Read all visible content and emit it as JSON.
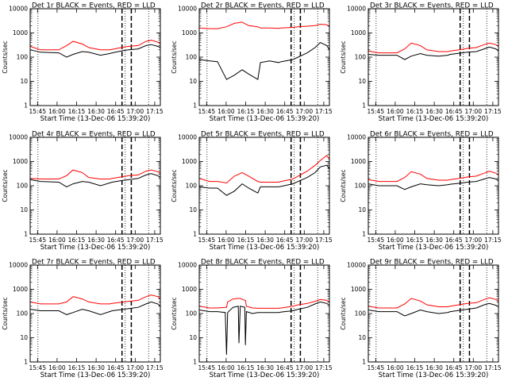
{
  "figure": {
    "start_time_label": "Start Time (13-Dec-06 15:39:20)",
    "ylabel": "Counts/sec",
    "x_tick_labels": [
      "15:45",
      "16:00",
      "16:15",
      "16:30",
      "16:45",
      "17:00",
      "17:15"
    ],
    "y_tick_labels": [
      "1",
      "10",
      "100",
      "1000",
      "10000"
    ],
    "colors": {
      "events": "#000000",
      "lld": "#ff0000",
      "axes": "#000000"
    }
  },
  "chart_data": [
    {
      "type": "line",
      "title": "Det 1r BLACK = Events, RED = LLD",
      "xlabel": "Start Time (13-Dec-06 15:39:20)",
      "ylabel": "Counts/sec",
      "x_unit": "minutes after 15:39:20",
      "xlim": [
        0,
        100
      ],
      "ylim": [
        1,
        10000
      ],
      "y_scale": "log",
      "x": [
        0,
        8,
        22,
        28,
        33,
        40,
        45,
        54,
        61,
        63,
        72,
        76,
        83,
        89,
        93,
        98,
        100
      ],
      "series": [
        {
          "name": "Events",
          "color": "#000000",
          "values": [
            200,
            160,
            150,
            100,
            130,
            170,
            160,
            120,
            140,
            150,
            190,
            200,
            220,
            300,
            330,
            280,
            250
          ]
        },
        {
          "name": "LLD",
          "color": "#ff0000",
          "values": [
            280,
            200,
            200,
            300,
            450,
            350,
            250,
            200,
            200,
            210,
            260,
            280,
            300,
            450,
            500,
            420,
            350
          ]
        }
      ],
      "markers": {
        "S": 16.8,
        "E": 18.5,
        "dotted_x": [
          6,
          73,
          91
        ]
      }
    },
    {
      "type": "line",
      "title": "Det 2r BLACK = Events, RED = LLD",
      "xlabel": "Start Time (13-Dec-06 15:39:20)",
      "ylabel": "Counts/sec",
      "x_unit": "minutes after 15:39:20",
      "xlim": [
        0,
        100
      ],
      "ylim": [
        1,
        10000
      ],
      "y_scale": "log",
      "x": [
        0,
        8,
        14,
        21,
        27,
        33,
        38,
        45,
        47,
        54,
        61,
        63,
        72,
        76,
        83,
        89,
        93,
        98,
        100
      ],
      "series": [
        {
          "name": "Events",
          "color": "#000000",
          "values": [
            80,
            70,
            65,
            12,
            18,
            30,
            20,
            12,
            60,
            70,
            60,
            65,
            80,
            100,
            150,
            250,
            400,
            300,
            200
          ]
        },
        {
          "name": "LLD",
          "color": "#ff0000",
          "values": [
            1600,
            1500,
            1500,
            1800,
            2500,
            2800,
            2000,
            1800,
            1600,
            1600,
            1550,
            1600,
            1700,
            1800,
            1900,
            2000,
            2300,
            2200,
            1800
          ]
        }
      ],
      "markers": {
        "S": 16.8,
        "E": 18.5,
        "dotted_x": [
          6,
          73,
          91
        ]
      }
    },
    {
      "type": "line",
      "title": "Det 3r BLACK = Events, RED = LLD",
      "xlabel": "Start Time (13-Dec-06 15:39:20)",
      "ylabel": "Counts/sec",
      "x_unit": "minutes after 15:39:20",
      "xlim": [
        0,
        100
      ],
      "ylim": [
        1,
        10000
      ],
      "y_scale": "log",
      "x": [
        0,
        8,
        22,
        28,
        33,
        40,
        45,
        54,
        61,
        63,
        72,
        76,
        83,
        89,
        93,
        98,
        100
      ],
      "series": [
        {
          "name": "Events",
          "color": "#000000",
          "values": [
            130,
            120,
            120,
            80,
            110,
            140,
            120,
            110,
            120,
            130,
            150,
            160,
            170,
            220,
            260,
            220,
            180
          ]
        },
        {
          "name": "LLD",
          "color": "#ff0000",
          "values": [
            180,
            150,
            150,
            220,
            380,
            300,
            200,
            170,
            170,
            180,
            210,
            230,
            250,
            330,
            380,
            330,
            280
          ]
        }
      ],
      "markers": {
        "S": 16.8,
        "E": 18.5,
        "dotted_x": [
          6,
          73,
          91
        ]
      }
    },
    {
      "type": "line",
      "title": "Det 4r BLACK = Events, RED = LLD",
      "xlabel": "Start Time (13-Dec-06 15:39:20)",
      "ylabel": "Counts/sec",
      "x_unit": "minutes after 15:39:20",
      "xlim": [
        0,
        100
      ],
      "ylim": [
        1,
        10000
      ],
      "y_scale": "log",
      "x": [
        0,
        8,
        22,
        28,
        33,
        40,
        45,
        54,
        61,
        63,
        72,
        76,
        83,
        89,
        93,
        98,
        100
      ],
      "series": [
        {
          "name": "Events",
          "color": "#000000",
          "values": [
            180,
            150,
            140,
            90,
            120,
            150,
            140,
            100,
            130,
            140,
            170,
            180,
            200,
            280,
            320,
            260,
            220
          ]
        },
        {
          "name": "LLD",
          "color": "#ff0000",
          "values": [
            200,
            190,
            190,
            260,
            450,
            350,
            220,
            190,
            190,
            200,
            240,
            260,
            280,
            400,
            450,
            380,
            320
          ]
        }
      ],
      "markers": {
        "S": 16.8,
        "E": 18.5,
        "dotted_x": [
          6,
          73,
          91
        ]
      }
    },
    {
      "type": "line",
      "title": "Det 5r BLACK = Events, RED = LLD",
      "xlabel": "Start Time (13-Dec-06 15:39:20)",
      "ylabel": "Counts/sec",
      "x_unit": "minutes after 15:39:20",
      "xlim": [
        0,
        100
      ],
      "ylim": [
        1,
        10000
      ],
      "y_scale": "log",
      "x": [
        0,
        8,
        14,
        21,
        27,
        33,
        38,
        45,
        47,
        54,
        61,
        63,
        72,
        76,
        83,
        89,
        93,
        98,
        100
      ],
      "series": [
        {
          "name": "Events",
          "color": "#000000",
          "values": [
            90,
            80,
            80,
            40,
            60,
            120,
            80,
            50,
            90,
            90,
            90,
            95,
            120,
            150,
            220,
            350,
            600,
            700,
            500
          ]
        },
        {
          "name": "LLD",
          "color": "#ff0000",
          "values": [
            200,
            150,
            150,
            130,
            250,
            350,
            250,
            150,
            140,
            140,
            140,
            150,
            190,
            250,
            400,
            700,
            1100,
            1800,
            1200
          ]
        }
      ],
      "markers": {
        "S": 16.8,
        "E": 18.5,
        "dotted_x": [
          6,
          73,
          91
        ]
      }
    },
    {
      "type": "line",
      "title": "Det 6r BLACK = Events, RED = LLD",
      "xlabel": "Start Time (13-Dec-06 15:39:20)",
      "ylabel": "Counts/sec",
      "x_unit": "minutes after 15:39:20",
      "xlim": [
        0,
        100
      ],
      "ylim": [
        1,
        10000
      ],
      "y_scale": "log",
      "x": [
        0,
        8,
        22,
        28,
        33,
        40,
        45,
        54,
        61,
        63,
        72,
        76,
        83,
        89,
        93,
        98,
        100
      ],
      "series": [
        {
          "name": "Events",
          "color": "#000000",
          "values": [
            120,
            100,
            100,
            70,
            90,
            120,
            110,
            100,
            110,
            115,
            130,
            140,
            150,
            190,
            220,
            190,
            160
          ]
        },
        {
          "name": "LLD",
          "color": "#ff0000",
          "values": [
            180,
            150,
            150,
            220,
            380,
            300,
            200,
            170,
            170,
            180,
            210,
            230,
            250,
            330,
            400,
            330,
            280
          ]
        }
      ],
      "markers": {
        "S": 16.8,
        "E": 18.5,
        "dotted_x": [
          6,
          73,
          91
        ]
      }
    },
    {
      "type": "line",
      "title": "Det 7r BLACK = Events, RED = LLD",
      "xlabel": "Start Time (13-Dec-06 15:39:20)",
      "ylabel": "Counts/sec",
      "x_unit": "minutes after 15:39:20",
      "xlim": [
        0,
        100
      ],
      "ylim": [
        1,
        10000
      ],
      "y_scale": "log",
      "x": [
        0,
        8,
        22,
        28,
        33,
        40,
        45,
        54,
        61,
        63,
        72,
        76,
        83,
        89,
        93,
        98,
        100
      ],
      "series": [
        {
          "name": "Events",
          "color": "#000000",
          "values": [
            150,
            130,
            130,
            90,
            110,
            150,
            130,
            90,
            120,
            130,
            150,
            160,
            180,
            250,
            300,
            250,
            200
          ]
        },
        {
          "name": "LLD",
          "color": "#ff0000",
          "values": [
            300,
            250,
            250,
            300,
            500,
            400,
            300,
            250,
            250,
            260,
            300,
            320,
            350,
            500,
            580,
            500,
            400
          ]
        }
      ],
      "markers": {
        "S": 16.8,
        "E": 18.5,
        "dotted_x": [
          6,
          73,
          91
        ]
      }
    },
    {
      "type": "line",
      "title": "Det 8r BLACK = Events, RED = LLD",
      "xlabel": "Start Time (13-Dec-06 15:39:20)",
      "ylabel": "Counts/sec",
      "x_unit": "minutes after 15:39:20",
      "xlim": [
        0,
        100
      ],
      "ylim": [
        1,
        10000
      ],
      "y_scale": "log",
      "x": [
        0,
        8,
        14,
        20,
        21,
        21.8,
        26,
        30,
        30.5,
        31.5,
        35,
        35.5,
        36.2,
        41,
        45,
        54,
        61,
        63,
        72,
        76,
        83,
        89,
        93,
        98,
        100
      ],
      "series": [
        {
          "name": "Events",
          "color": "#000000",
          "values": [
            140,
            120,
            120,
            110,
            2,
            110,
            180,
            200,
            6,
            200,
            180,
            5,
            120,
            100,
            110,
            110,
            110,
            115,
            130,
            150,
            180,
            250,
            300,
            260,
            220
          ]
        },
        {
          "name": "LLD",
          "color": "#ff0000",
          "values": [
            200,
            170,
            170,
            180,
            180,
            300,
            400,
            420,
            420,
            420,
            350,
            350,
            200,
            170,
            165,
            165,
            165,
            170,
            200,
            230,
            260,
            320,
            380,
            350,
            300
          ]
        }
      ],
      "markers": {
        "S": 16.8,
        "E": 18.5,
        "dotted_x": [
          6,
          73,
          91
        ]
      }
    },
    {
      "type": "line",
      "title": "Det 9r BLACK = Events, RED = LLD",
      "xlabel": "Start Time (13-Dec-06 15:39:20)",
      "ylabel": "Counts/sec",
      "x_unit": "minutes after 15:39:20",
      "xlim": [
        0,
        100
      ],
      "ylim": [
        1,
        10000
      ],
      "y_scale": "log",
      "x": [
        0,
        8,
        22,
        28,
        33,
        40,
        45,
        54,
        61,
        63,
        72,
        76,
        83,
        89,
        93,
        98,
        100
      ],
      "series": [
        {
          "name": "Events",
          "color": "#000000",
          "values": [
            140,
            120,
            120,
            80,
            100,
            140,
            120,
            100,
            110,
            120,
            140,
            150,
            170,
            230,
            260,
            220,
            190
          ]
        },
        {
          "name": "LLD",
          "color": "#ff0000",
          "values": [
            200,
            170,
            170,
            250,
            420,
            330,
            230,
            190,
            190,
            200,
            240,
            260,
            280,
            380,
            450,
            380,
            320
          ]
        }
      ],
      "markers": {
        "S": 16.8,
        "E": 18.5,
        "dotted_x": [
          6,
          73,
          91
        ]
      }
    }
  ]
}
